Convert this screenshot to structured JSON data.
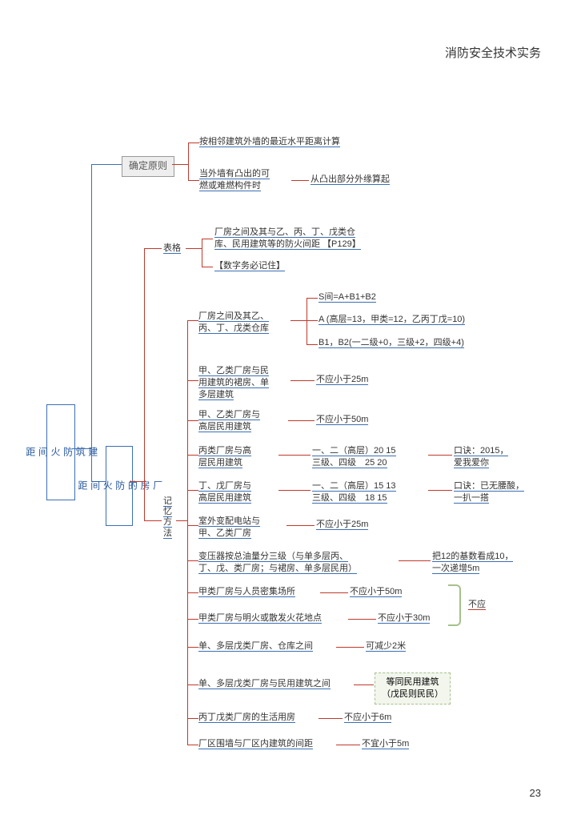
{
  "header_title": "消防安全技术实务",
  "page_number": "23",
  "root_box": "建\n筑\n防\n火\n间\n距",
  "sec1_title": "确定原则",
  "sec1_r1": "按相邻建筑外墙的最近水平距离计算",
  "sec1_r2_left": "当外墙有凸出的可\n燃或难燃构件时",
  "sec1_r2_right": "从凸出部分外缘算起",
  "sec2_box": "厂\n房\n的\n防\n火\n间\n距",
  "sec2_sub1": "表格",
  "sec2_sub2": "记\n忆\n方\n法",
  "table_line1": "厂房之间及其与乙、丙、丁、戊类仓\n库、民用建筑等的防火间距 【P129】",
  "table_note": "【数字务必记住】",
  "m1_left": "厂房之间及其乙、\n丙、丁、戊类仓库",
  "m1_r1": "S间=A+B1+B2",
  "m1_r2": "A (高层=13，甲类=12，乙丙丁戊=10)",
  "m1_r3": "B1，B2(一二级+0，三级+2，四级+4)",
  "m2_left": "甲、乙类厂房与民\n用建筑的裙房、单\n多层建筑",
  "m2_right": "不应小于25m",
  "m3_left": "甲、乙类厂房与\n高层民用建筑",
  "m3_right": "不应小于50m",
  "m4_left": "丙类厂房与高\n层民用建筑",
  "m4_mid": "一、二（高层）20 15\n三级、四级　25 20",
  "m4_right": "口诀：2015，\n爱我爱你",
  "m5_left": "丁、戊厂房与\n高层民用建筑",
  "m5_mid": "一、二（高层）15 13\n三级、四级　18 15",
  "m5_right": "口诀：已无腰酸，\n一扒一搭",
  "m6_left": "室外变配电站与\n甲、乙类厂房",
  "m6_right": "不应小于25m",
  "m7_left": "变压器按总油量分三级（与单多层丙、\n丁、戊、类厂房；与裙房、单多层民用）",
  "m7_right": "把12的基数看成10，\n一次递增5m",
  "m8_left": "甲类厂房与人员密集场所",
  "m8_right": "不应小于50m",
  "m9_left": "甲类厂房与明火或散发火花地点",
  "m9_right": "不应小于30m",
  "brace_label": "不应",
  "m10_left": "单、多层戊类厂房、仓库之间",
  "m10_right": "可减少2米",
  "m11_left": "单、多层戊类厂房与民用建筑之间",
  "m11_right_box": "等同民用建筑\n（戊民则民民）",
  "m12_left": "丙丁戊类厂房的生活用房",
  "m12_right": "不应小于6m",
  "m13_left": "厂区围墙与厂区内建筑的间距",
  "m13_right": "不宜小于5m",
  "colors": {
    "blue": "#3b6fb5",
    "red": "#c0392b",
    "green": "#a6c08c",
    "gray": "#eeeeee"
  }
}
